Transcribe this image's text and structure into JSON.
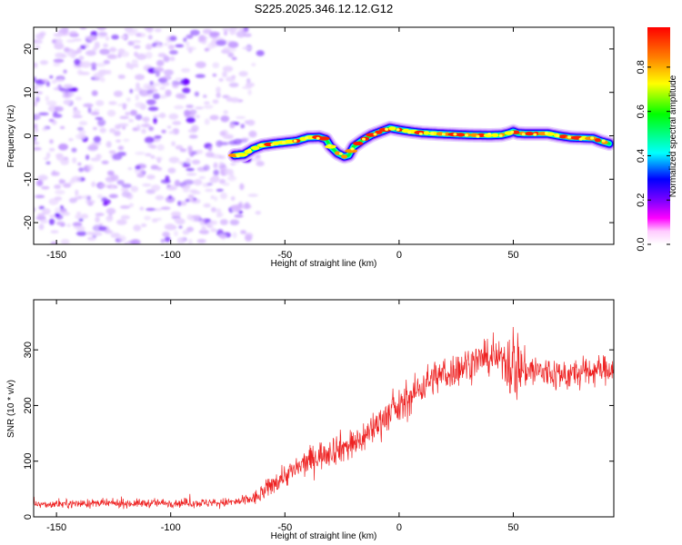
{
  "title": "S225.2025.346.12.12.G12",
  "colorbar": {
    "label": "Normalized spectral amplitude",
    "ticks": [
      "0.0",
      "0.2",
      "0.4",
      "0.6",
      "0.8"
    ],
    "tick_values": [
      0.0,
      0.2,
      0.4,
      0.6,
      0.8
    ],
    "range": [
      0,
      0.98
    ],
    "colors": [
      "#ffffff",
      "#ff00ff",
      "#8000ff",
      "#0000ff",
      "#00ffff",
      "#00ff00",
      "#ffff00",
      "#ff8000",
      "#ff0000"
    ]
  },
  "chart_data": [
    {
      "type": "heatmap",
      "title": "S225.2025.346.12.12.G12",
      "xlabel": "Height of straight line (km)",
      "ylabel": "Frequency (Hz)",
      "xlim": [
        -160,
        94
      ],
      "ylim": [
        -25,
        25
      ],
      "xticks": [
        -150,
        -100,
        -50,
        0,
        50
      ],
      "xtick_labels": [
        "-150",
        "-100",
        "-50",
        "0",
        "50"
      ],
      "yticks": [
        -20,
        -10,
        0,
        10,
        20
      ],
      "ytick_labels": [
        "-20",
        "-10",
        "0",
        "10",
        "20"
      ],
      "noise_region": {
        "x_range": [
          -160,
          -70
        ],
        "description_value": 0.3
      },
      "ridge": {
        "x": [
          -72,
          -68,
          -64,
          -60,
          -55,
          -50,
          -45,
          -40,
          -35,
          -32,
          -30,
          -27,
          -24,
          -22,
          -20,
          -16,
          -12,
          -8,
          -4,
          0,
          5,
          10,
          20,
          30,
          40,
          45,
          48,
          50,
          52,
          55,
          60,
          65,
          70,
          75,
          80,
          85,
          88,
          92
        ],
        "y": [
          -4.5,
          -4.3,
          -3.0,
          -2.2,
          -1.8,
          -1.5,
          -1.2,
          -0.4,
          -0.3,
          -0.8,
          -2.5,
          -4.0,
          -4.8,
          -4.5,
          -2.5,
          -1.0,
          0.2,
          1.0,
          1.8,
          1.4,
          1.0,
          0.7,
          0.4,
          0.2,
          0.1,
          0.2,
          0.6,
          1.0,
          0.6,
          0.5,
          0.5,
          0.5,
          0.0,
          -0.4,
          -0.5,
          -0.6,
          -1.2,
          -1.8
        ],
        "peak_amplitude": 0.98
      }
    },
    {
      "type": "line",
      "xlabel": "Height of straight line (km)",
      "ylabel": "SNR (10 * v/v)",
      "xlim": [
        -160,
        94
      ],
      "ylim": [
        0,
        390
      ],
      "xticks": [
        -150,
        -100,
        -50,
        0,
        50
      ],
      "xtick_labels": [
        "-150",
        "-100",
        "-50",
        "0",
        "50"
      ],
      "yticks": [
        0,
        100,
        200,
        300
      ],
      "ytick_labels": [
        "0",
        "100",
        "200",
        "300"
      ],
      "line_color": "#ee2222",
      "trend": {
        "x": [
          -160,
          -140,
          -120,
          -100,
          -80,
          -70,
          -62,
          -55,
          -50,
          -45,
          -40,
          -35,
          -30,
          -25,
          -20,
          -15,
          -10,
          -5,
          0,
          5,
          10,
          15,
          20,
          25,
          30,
          35,
          40,
          45,
          50,
          55,
          60,
          65,
          70,
          75,
          80,
          85,
          90,
          94
        ],
        "y": [
          22,
          24,
          24,
          25,
          25,
          27,
          35,
          60,
          75,
          85,
          100,
          110,
          120,
          125,
          130,
          145,
          165,
          185,
          195,
          215,
          235,
          250,
          255,
          265,
          275,
          282,
          285,
          285,
          275,
          265,
          262,
          258,
          255,
          255,
          258,
          262,
          265,
          268
        ]
      },
      "noise_amplitude": {
        "x": [
          -160,
          -70,
          -55,
          -30,
          0,
          30,
          45,
          50,
          55,
          94
        ],
        "y": [
          10,
          12,
          28,
          40,
          45,
          45,
          40,
          120,
          50,
          35
        ]
      }
    }
  ]
}
